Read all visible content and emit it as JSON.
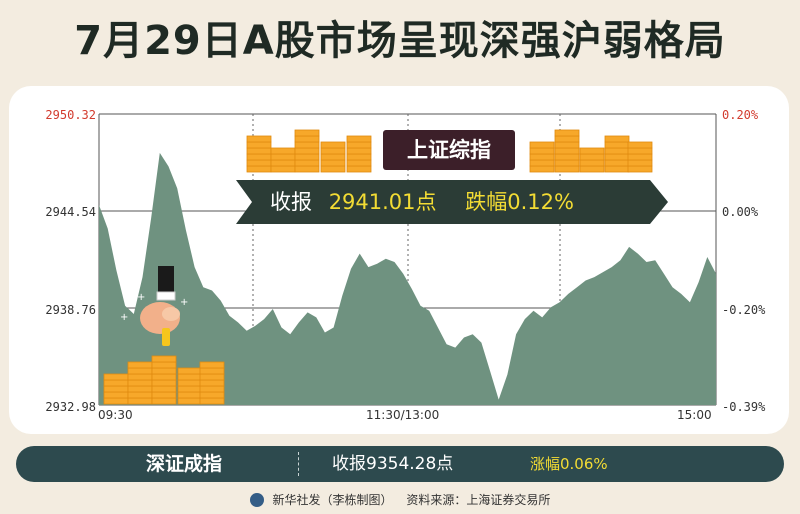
{
  "title": "7月29日A股市场呈现深强沪弱格局",
  "badge": "上证综指",
  "banner": {
    "close_label": "收报",
    "close_value": "2941.01点",
    "change_label": "跌幅",
    "change_value": "0.12%"
  },
  "shenzhen": {
    "name": "深证成指",
    "close": "收报9354.28点",
    "change": "涨幅0.06%"
  },
  "credit": {
    "publisher": "新华社发（李栋制图）",
    "source": "资料来源：上海证券交易所"
  },
  "colors": {
    "area_fill": "#6f9280",
    "gold": "#f7a82a",
    "dark_bar": "#2d4a4e",
    "title": "#1f2a24",
    "red_label": "#d23b2e",
    "highlight": "#f3dc34"
  },
  "chart_data": {
    "type": "area",
    "title": "",
    "xlabel": "",
    "ylabel": "",
    "y_ticks_left": [
      "2950.32",
      "2944.54",
      "2938.76",
      "2932.98"
    ],
    "y_ticks_right": [
      "0.20%",
      "0.00%",
      "-0.20%",
      "-0.39%"
    ],
    "x_ticks": [
      "09:30",
      "11:30/13:00",
      "15:00"
    ],
    "ylim": [
      2932.98,
      2950.32
    ],
    "grid": true,
    "series": [
      {
        "values": [
          2944.9,
          2943.5,
          2941.0,
          2938.9,
          2938.4,
          2940.6,
          2944.1,
          2948.0,
          2947.2,
          2945.9,
          2943.4,
          2941.2,
          2940.0,
          2939.8,
          2939.2,
          2938.3,
          2937.9,
          2937.4,
          2937.7,
          2938.1,
          2938.7,
          2937.6,
          2937.2,
          2937.9,
          2938.5,
          2938.2,
          2937.3,
          2937.6,
          2939.5,
          2941.1,
          2942.0,
          2941.2,
          2941.4,
          2941.7,
          2941.5,
          2940.8,
          2939.9,
          2938.9,
          2938.6,
          2937.6,
          2936.6,
          2936.4,
          2937.0,
          2937.2,
          2936.7,
          2935.0,
          2933.3,
          2934.8,
          2937.2,
          2938.1,
          2938.6,
          2938.2,
          2938.8,
          2939.1,
          2939.6,
          2940.0,
          2940.4,
          2940.6,
          2940.9,
          2941.2,
          2941.6,
          2942.4,
          2942.0,
          2941.5,
          2941.6,
          2940.8,
          2940.0,
          2939.6,
          2939.1,
          2940.3,
          2941.8,
          2940.8
        ]
      }
    ]
  }
}
